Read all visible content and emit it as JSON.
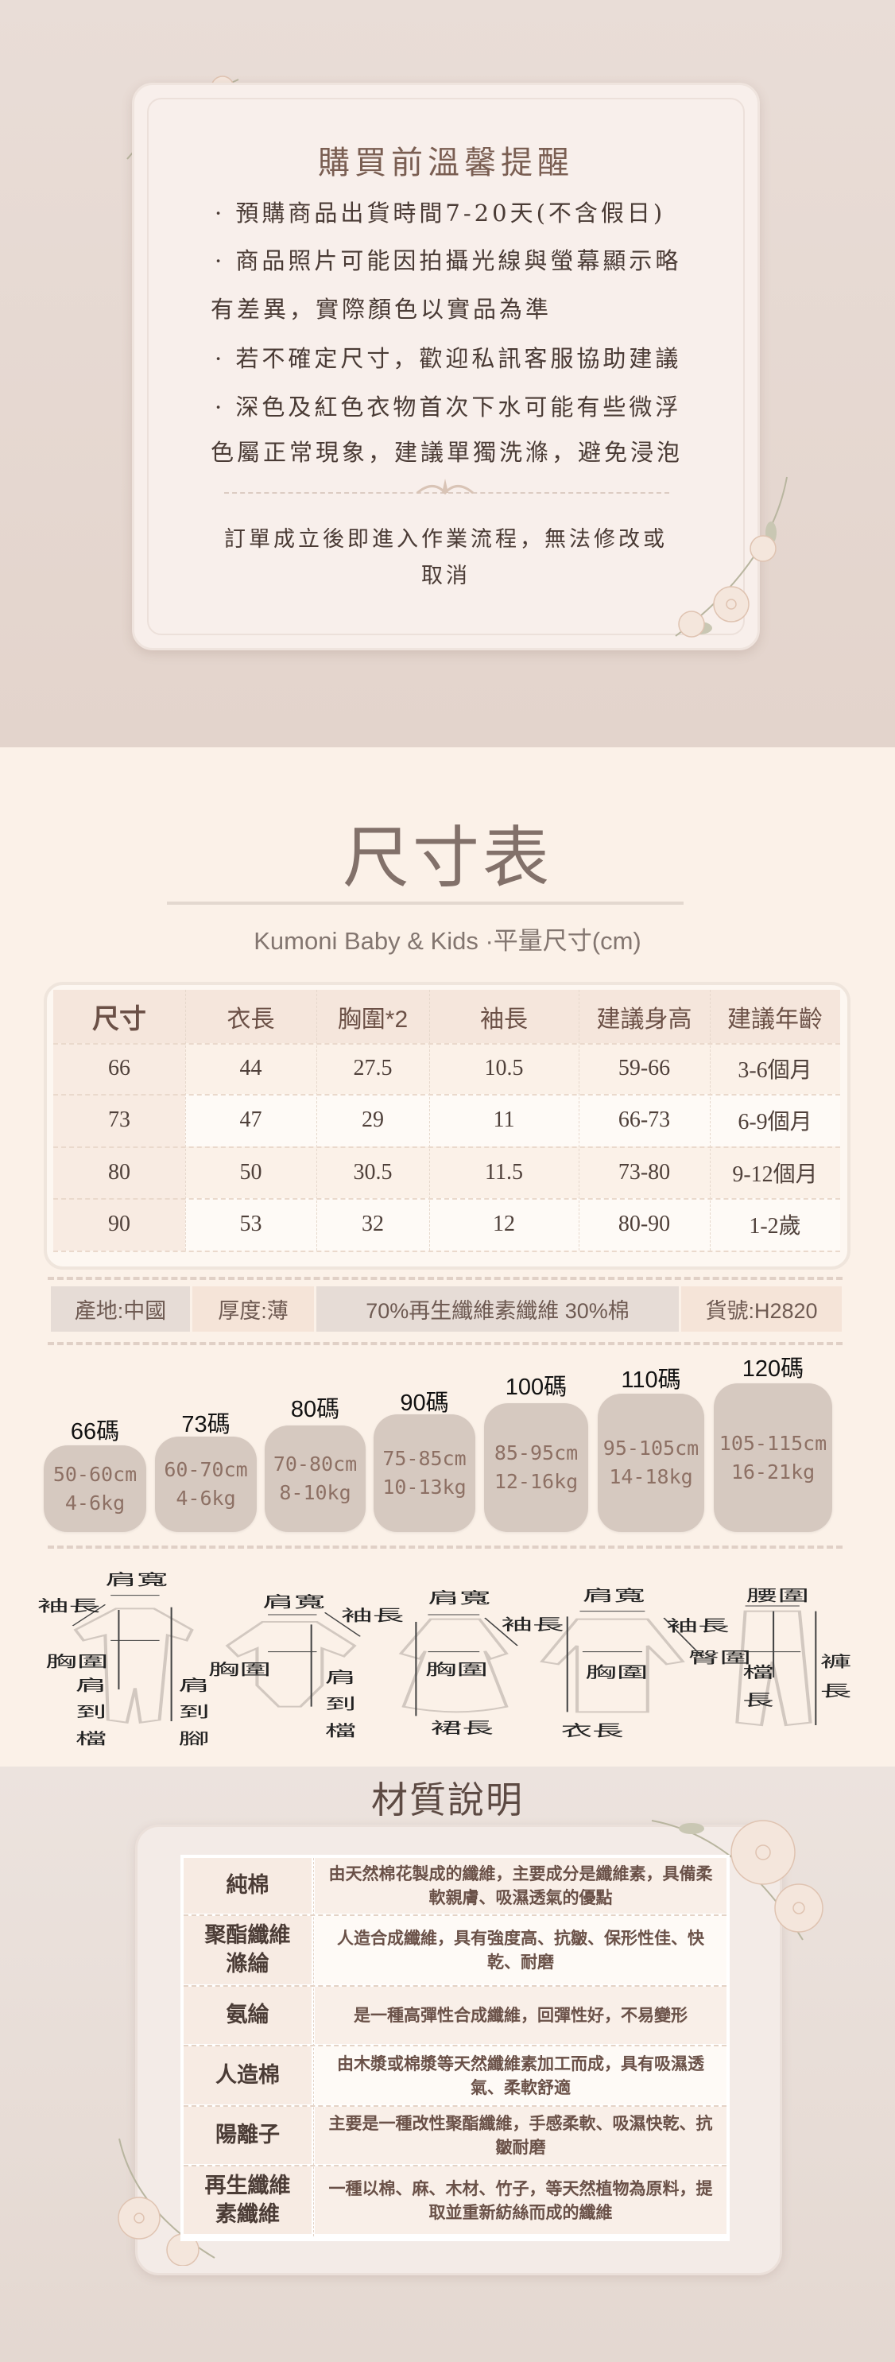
{
  "reminder": {
    "title": "購買前溫馨提醒",
    "lines": [
      "· 預購商品出貨時間7-20天(不含假日)",
      "· 商品照片可能因拍攝光線與螢幕顯示略",
      "有差異，實際顏色以實品為準",
      "· 若不確定尺寸，歡迎私訊客服協助建議",
      "· 深色及紅色衣物首次下水可能有些微浮",
      "色屬正常現象，建議單獨洗滌，避免浸泡"
    ],
    "footer_lines": [
      "訂單成立後即進入作業流程，無法修改或",
      "取消"
    ]
  },
  "size_chart": {
    "title": "尺寸表",
    "subtitle": "Kumoni Baby & Kids  ·平量尺寸(cm)",
    "headers": [
      "尺寸",
      "衣長",
      "胸圍*2",
      "袖長",
      "建議身高",
      "建議年齡"
    ],
    "rows": [
      [
        "66",
        "44",
        "27.5",
        "10.5",
        "59-66",
        "3-6個月"
      ],
      [
        "73",
        "47",
        "29",
        "11",
        "66-73",
        "6-9個月"
      ],
      [
        "80",
        "50",
        "30.5",
        "11.5",
        "73-80",
        "9-12個月"
      ],
      [
        "90",
        "53",
        "32",
        "12",
        "80-90",
        "1-2歲"
      ]
    ],
    "info": [
      "產地:中國",
      "厚度:薄",
      "70%再生纖維素纖維  30%棉",
      "貨號:H2820"
    ]
  },
  "size_guide": [
    {
      "label": "66碼",
      "height": "50-60cm",
      "weight": "4-6kg"
    },
    {
      "label": "73碼",
      "height": "60-70cm",
      "weight": "4-6kg"
    },
    {
      "label": "80碼",
      "height": "70-80cm",
      "weight": "8-10kg"
    },
    {
      "label": "90碼",
      "height": "75-85cm",
      "weight": "10-13kg"
    },
    {
      "label": "100碼",
      "height": "85-95cm",
      "weight": "12-16kg"
    },
    {
      "label": "110碼",
      "height": "95-105cm",
      "weight": "14-18kg"
    },
    {
      "label": "120碼",
      "height": "105-115cm",
      "weight": "16-21kg"
    }
  ],
  "diagram_labels": {
    "romper": {
      "shoulder": "肩寬",
      "sleeve": "袖長",
      "chest": "胸圍",
      "s2c": [
        "肩",
        "到",
        "檔"
      ],
      "s2f": [
        "肩",
        "到",
        "腳"
      ]
    },
    "bodysuit": {
      "shoulder": "肩寬",
      "sleeve": "袖長",
      "chest": "胸圍",
      "s2c": [
        "肩",
        "到",
        "檔"
      ]
    },
    "dress": {
      "shoulder": "肩寬",
      "sleeve": "袖長",
      "chest": "胸圍",
      "length": "裙長"
    },
    "top": {
      "shoulder": "肩寬",
      "sleeve": "袖長",
      "chest": "胸圍",
      "length": "衣長"
    },
    "pants": {
      "waist": "腰圍",
      "hip": "臀圍",
      "rise": [
        "檔",
        "長"
      ],
      "length": [
        "褲",
        "長"
      ]
    }
  },
  "materials": {
    "title": "材質說明",
    "rows": [
      {
        "name": "純棉",
        "desc": "由天然棉花製成的纖維，主要成分是纖維素，具備柔軟親膚、吸濕透氣的優點"
      },
      {
        "name": "聚酯纖維滌綸",
        "desc": "人造合成纖維，具有強度高、抗皺、保形性佳、快乾、耐磨"
      },
      {
        "name": "氨綸",
        "desc": "是一種高彈性合成纖維，回彈性好，不易變形"
      },
      {
        "name": "人造棉",
        "desc": "由木漿或棉漿等天然纖維素加工而成，具有吸濕透氣、柔軟舒適"
      },
      {
        "name": "陽離子",
        "desc": "主要是一種改性聚酯纖維，手感柔軟、吸濕快乾、抗皺耐磨"
      },
      {
        "name": "再生纖維素纖維",
        "desc": "一種以棉、麻、木材、竹子，等天然植物為原料，提取並重新紡絲而成的纖維"
      }
    ]
  },
  "colors": {
    "text": "#5e4a42",
    "cream": "#fbf1e8",
    "bubble": "#d6c9c0",
    "header": "#f5e6dc"
  }
}
